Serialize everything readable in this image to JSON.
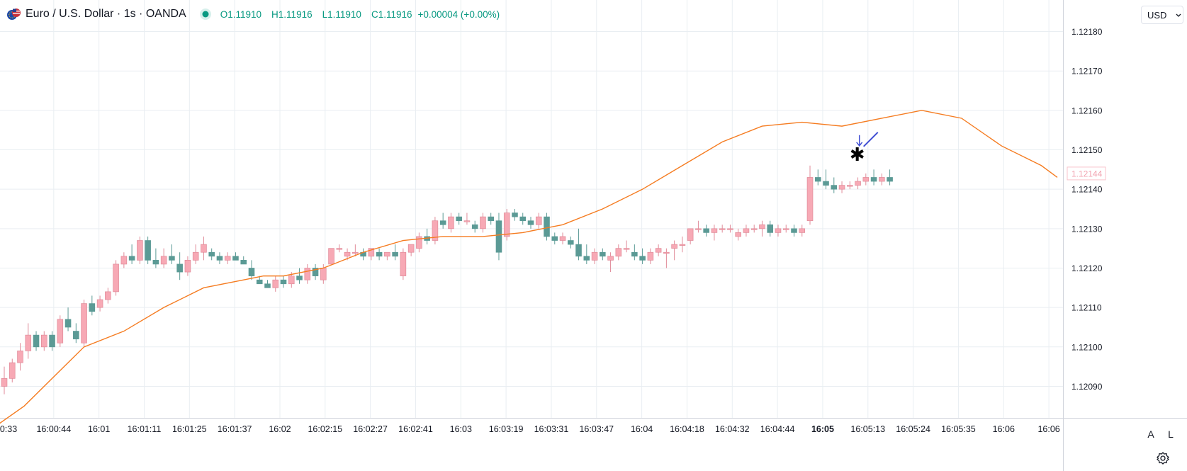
{
  "header": {
    "title": "Euro / U.S. Dollar · 1s · OANDA",
    "ohlc": {
      "o_label": "O",
      "o": "1.11910",
      "h_label": "H",
      "h": "1.11916",
      "l_label": "L",
      "l": "1.11910",
      "c_label": "C",
      "c": "1.11916",
      "change": "+0.00004 (+0.00%)"
    }
  },
  "currency_button": {
    "label": "USD",
    "icon": "chevron-down-icon"
  },
  "price_scale": {
    "ticks": [
      "1.12180",
      "1.12170",
      "1.12160",
      "1.12150",
      "1.12140",
      "1.12130",
      "1.12120",
      "1.12110",
      "1.12100",
      "1.12090"
    ],
    "ma_label": "1.12144"
  },
  "time_axis": {
    "ticks": [
      "0:33",
      "16:00:44",
      "16:01",
      "16:01:11",
      "16:01:25",
      "16:01:37",
      "16:02",
      "16:02:15",
      "16:02:27",
      "16:02:41",
      "16:03",
      "16:03:19",
      "16:03:31",
      "16:03:47",
      "16:04",
      "16:04:18",
      "16:04:32",
      "16:04:44",
      "16:05",
      "16:05:13",
      "16:05:24",
      "16:05:35",
      "16:06",
      "16:06"
    ],
    "bold_tick": "16:05"
  },
  "scale_buttons": {
    "auto": "A",
    "log": "L"
  },
  "icons": [
    "euro-dollar-flags-icon",
    "live-status-dot-icon",
    "chevron-down-icon",
    "settings-gear-icon",
    "arrow-down-drawing-icon",
    "star-marker-icon"
  ],
  "colors": {
    "up": "#f7a9b5",
    "up_border": "#e08a98",
    "down": "#5b9a95",
    "ma": "#f57c21",
    "grid": "#e9eef2",
    "drawing": "#3f4ed3",
    "ohlc_text": "#089981"
  },
  "chart_data": {
    "type": "candlestick",
    "title": "",
    "xlabel": "",
    "ylabel": "",
    "ylim": [
      1.12082,
      1.12188
    ],
    "moving_average": [
      [
        -2,
        1.1208
      ],
      [
        5,
        1.12085
      ],
      [
        15,
        1.12095
      ],
      [
        20,
        1.121
      ],
      [
        30,
        1.12104
      ],
      [
        40,
        1.1211
      ],
      [
        50,
        1.12115
      ],
      [
        60,
        1.12117
      ],
      [
        65,
        1.12118
      ],
      [
        70,
        1.12118
      ],
      [
        80,
        1.1212
      ],
      [
        90,
        1.12124
      ],
      [
        100,
        1.12127
      ],
      [
        110,
        1.12128
      ],
      [
        120,
        1.12128
      ],
      [
        130,
        1.12129
      ],
      [
        140,
        1.12131
      ],
      [
        150,
        1.12135
      ],
      [
        160,
        1.1214
      ],
      [
        170,
        1.12146
      ],
      [
        180,
        1.12152
      ],
      [
        190,
        1.12156
      ],
      [
        200,
        1.12157
      ],
      [
        210,
        1.12156
      ],
      [
        220,
        1.12158
      ],
      [
        230,
        1.1216
      ],
      [
        240,
        1.12158
      ],
      [
        250,
        1.12151
      ],
      [
        260,
        1.12146
      ],
      [
        264,
        1.12143
      ]
    ],
    "candles": [
      [
        0,
        1.1209,
        1.12095,
        1.12088,
        1.12092
      ],
      [
        2,
        1.12092,
        1.12097,
        1.12091,
        1.12096
      ],
      [
        4,
        1.12096,
        1.12101,
        1.12094,
        1.12099
      ],
      [
        6,
        1.12099,
        1.12106,
        1.12097,
        1.12103
      ],
      [
        8,
        1.12103,
        1.12104,
        1.12099,
        1.121
      ],
      [
        10,
        1.121,
        1.12104,
        1.12099,
        1.12103
      ],
      [
        12,
        1.12103,
        1.12104,
        1.12099,
        1.121
      ],
      [
        14,
        1.12101,
        1.12108,
        1.121,
        1.12107
      ],
      [
        16,
        1.12107,
        1.1211,
        1.12104,
        1.12105
      ],
      [
        18,
        1.12104,
        1.12106,
        1.12101,
        1.12102
      ],
      [
        20,
        1.12101,
        1.12112,
        1.121,
        1.12111
      ],
      [
        22,
        1.12111,
        1.12113,
        1.12108,
        1.12109
      ],
      [
        24,
        1.1211,
        1.12113,
        1.12109,
        1.12112
      ],
      [
        26,
        1.12112,
        1.12115,
        1.12111,
        1.12114
      ],
      [
        28,
        1.12114,
        1.12122,
        1.12113,
        1.12121
      ],
      [
        30,
        1.12121,
        1.12124,
        1.1212,
        1.12123
      ],
      [
        32,
        1.12123,
        1.12126,
        1.12121,
        1.12122
      ],
      [
        34,
        1.12122,
        1.12128,
        1.12121,
        1.12127
      ],
      [
        36,
        1.12127,
        1.12128,
        1.12121,
        1.12122
      ],
      [
        38,
        1.12122,
        1.12125,
        1.1212,
        1.12121
      ],
      [
        40,
        1.12121,
        1.12125,
        1.1212,
        1.12123
      ],
      [
        42,
        1.12123,
        1.12126,
        1.12121,
        1.12122
      ],
      [
        44,
        1.12121,
        1.12124,
        1.12117,
        1.12119
      ],
      [
        46,
        1.12119,
        1.12123,
        1.12118,
        1.12122
      ],
      [
        48,
        1.12122,
        1.12126,
        1.12121,
        1.12124
      ],
      [
        50,
        1.12124,
        1.12128,
        1.12122,
        1.12126
      ],
      [
        52,
        1.12124,
        1.12125,
        1.12122,
        1.12123
      ],
      [
        54,
        1.12123,
        1.12124,
        1.12121,
        1.12122
      ],
      [
        56,
        1.12122,
        1.12124,
        1.12121,
        1.12123
      ],
      [
        58,
        1.12123,
        1.12124,
        1.12122,
        1.12122
      ],
      [
        60,
        1.12122,
        1.12123,
        1.12121,
        1.12121
      ],
      [
        62,
        1.1212,
        1.12122,
        1.12117,
        1.12118
      ],
      [
        64,
        1.12117,
        1.12118,
        1.12116,
        1.12116
      ],
      [
        66,
        1.12116,
        1.12117,
        1.12115,
        1.12115
      ],
      [
        68,
        1.12115,
        1.12118,
        1.12114,
        1.12117
      ],
      [
        70,
        1.12117,
        1.12118,
        1.12115,
        1.12116
      ],
      [
        72,
        1.12116,
        1.12119,
        1.12115,
        1.12118
      ],
      [
        74,
        1.12118,
        1.1212,
        1.12116,
        1.12117
      ],
      [
        76,
        1.12117,
        1.12121,
        1.12116,
        1.1212
      ],
      [
        78,
        1.1212,
        1.12121,
        1.12117,
        1.12118
      ],
      [
        80,
        1.12117,
        1.12121,
        1.12116,
        1.1212
      ],
      [
        82,
        1.12121,
        1.12125,
        1.12121,
        1.12125
      ],
      [
        84,
        1.12125,
        1.12126,
        1.12124,
        1.12125
      ],
      [
        86,
        1.12123,
        1.12125,
        1.12122,
        1.12124
      ],
      [
        88,
        1.12124,
        1.12126,
        1.12123,
        1.12124
      ],
      [
        90,
        1.12124,
        1.12125,
        1.12122,
        1.12123
      ],
      [
        92,
        1.12123,
        1.12125,
        1.12122,
        1.12125
      ],
      [
        94,
        1.12124,
        1.12125,
        1.12122,
        1.12123
      ],
      [
        96,
        1.12123,
        1.12124,
        1.12122,
        1.12124
      ],
      [
        98,
        1.12124,
        1.12126,
        1.12122,
        1.12123
      ],
      [
        100,
        1.12118,
        1.12125,
        1.12117,
        1.12124
      ],
      [
        102,
        1.12124,
        1.12126,
        1.12123,
        1.12126
      ],
      [
        104,
        1.12125,
        1.12129,
        1.12124,
        1.12128
      ],
      [
        106,
        1.12128,
        1.1213,
        1.12126,
        1.12127
      ],
      [
        108,
        1.12127,
        1.12133,
        1.12126,
        1.12132
      ],
      [
        110,
        1.12132,
        1.12134,
        1.1213,
        1.12131
      ],
      [
        112,
        1.1213,
        1.12134,
        1.12129,
        1.12133
      ],
      [
        114,
        1.12133,
        1.12134,
        1.12131,
        1.12132
      ],
      [
        116,
        1.12132,
        1.12134,
        1.12131,
        1.12132
      ],
      [
        118,
        1.12131,
        1.12132,
        1.12129,
        1.1213
      ],
      [
        120,
        1.1213,
        1.12134,
        1.12129,
        1.12133
      ],
      [
        122,
        1.12133,
        1.12134,
        1.12131,
        1.12132
      ],
      [
        124,
        1.12132,
        1.12134,
        1.12122,
        1.12124
      ],
      [
        126,
        1.12128,
        1.12135,
        1.12127,
        1.12134
      ],
      [
        128,
        1.12134,
        1.12135,
        1.12132,
        1.12133
      ],
      [
        130,
        1.12133,
        1.12134,
        1.12131,
        1.12132
      ],
      [
        132,
        1.12132,
        1.12133,
        1.1213,
        1.12131
      ],
      [
        134,
        1.12131,
        1.12134,
        1.1213,
        1.12133
      ],
      [
        136,
        1.12133,
        1.12134,
        1.12127,
        1.12128
      ],
      [
        138,
        1.12128,
        1.12129,
        1.12126,
        1.12127
      ],
      [
        140,
        1.12127,
        1.12129,
        1.12126,
        1.12128
      ],
      [
        142,
        1.12127,
        1.12128,
        1.12125,
        1.12126
      ],
      [
        144,
        1.12126,
        1.1213,
        1.12122,
        1.12123
      ],
      [
        146,
        1.12123,
        1.12126,
        1.12121,
        1.12122
      ],
      [
        148,
        1.12122,
        1.12125,
        1.12121,
        1.12124
      ],
      [
        150,
        1.12124,
        1.12125,
        1.12122,
        1.12123
      ],
      [
        152,
        1.12122,
        1.12124,
        1.12119,
        1.12123
      ],
      [
        154,
        1.12123,
        1.12126,
        1.12122,
        1.12125
      ],
      [
        156,
        1.12125,
        1.12127,
        1.12124,
        1.12125
      ],
      [
        158,
        1.12124,
        1.12126,
        1.12122,
        1.12123
      ],
      [
        160,
        1.12123,
        1.12125,
        1.12121,
        1.12122
      ],
      [
        162,
        1.12122,
        1.12125,
        1.12121,
        1.12124
      ],
      [
        164,
        1.12124,
        1.12126,
        1.12123,
        1.12125
      ],
      [
        166,
        1.12124,
        1.12125,
        1.1212,
        1.12124
      ],
      [
        168,
        1.12125,
        1.12127,
        1.12122,
        1.12126
      ],
      [
        170,
        1.12126,
        1.12128,
        1.12124,
        1.12126
      ],
      [
        172,
        1.12127,
        1.1213,
        1.12126,
        1.1213
      ],
      [
        174,
        1.1213,
        1.12132,
        1.12129,
        1.1213
      ],
      [
        176,
        1.1213,
        1.12131,
        1.12128,
        1.12129
      ],
      [
        178,
        1.12129,
        1.12131,
        1.12127,
        1.1213
      ],
      [
        180,
        1.1213,
        1.12131,
        1.12129,
        1.1213
      ],
      [
        182,
        1.1213,
        1.12131,
        1.12129,
        1.1213
      ],
      [
        184,
        1.12128,
        1.1213,
        1.12127,
        1.12129
      ],
      [
        186,
        1.12129,
        1.12131,
        1.12128,
        1.1213
      ],
      [
        188,
        1.1213,
        1.12131,
        1.12129,
        1.1213
      ],
      [
        190,
        1.1213,
        1.12132,
        1.12128,
        1.12131
      ],
      [
        192,
        1.12131,
        1.12132,
        1.12128,
        1.12129
      ],
      [
        194,
        1.12129,
        1.12131,
        1.12128,
        1.1213
      ],
      [
        196,
        1.1213,
        1.12131,
        1.12129,
        1.1213
      ],
      [
        198,
        1.1213,
        1.12131,
        1.12128,
        1.12129
      ],
      [
        200,
        1.12129,
        1.12131,
        1.12128,
        1.1213
      ],
      [
        202,
        1.12132,
        1.12146,
        1.12131,
        1.12143
      ],
      [
        204,
        1.12143,
        1.12145,
        1.12141,
        1.12142
      ],
      [
        206,
        1.12142,
        1.12145,
        1.1214,
        1.12141
      ],
      [
        208,
        1.12141,
        1.12143,
        1.12139,
        1.1214
      ],
      [
        210,
        1.1214,
        1.12142,
        1.12139,
        1.12141
      ],
      [
        212,
        1.12141,
        1.12142,
        1.1214,
        1.12141
      ],
      [
        214,
        1.12141,
        1.12143,
        1.1214,
        1.12142
      ],
      [
        216,
        1.12142,
        1.12144,
        1.12141,
        1.12143
      ],
      [
        218,
        1.12143,
        1.12145,
        1.12141,
        1.12142
      ],
      [
        220,
        1.12142,
        1.12144,
        1.12141,
        1.12143
      ],
      [
        222,
        1.12143,
        1.12145,
        1.12141,
        1.12142
      ]
    ],
    "candle_index_note": "",
    "x_index_range": [
      0,
      264
    ]
  }
}
